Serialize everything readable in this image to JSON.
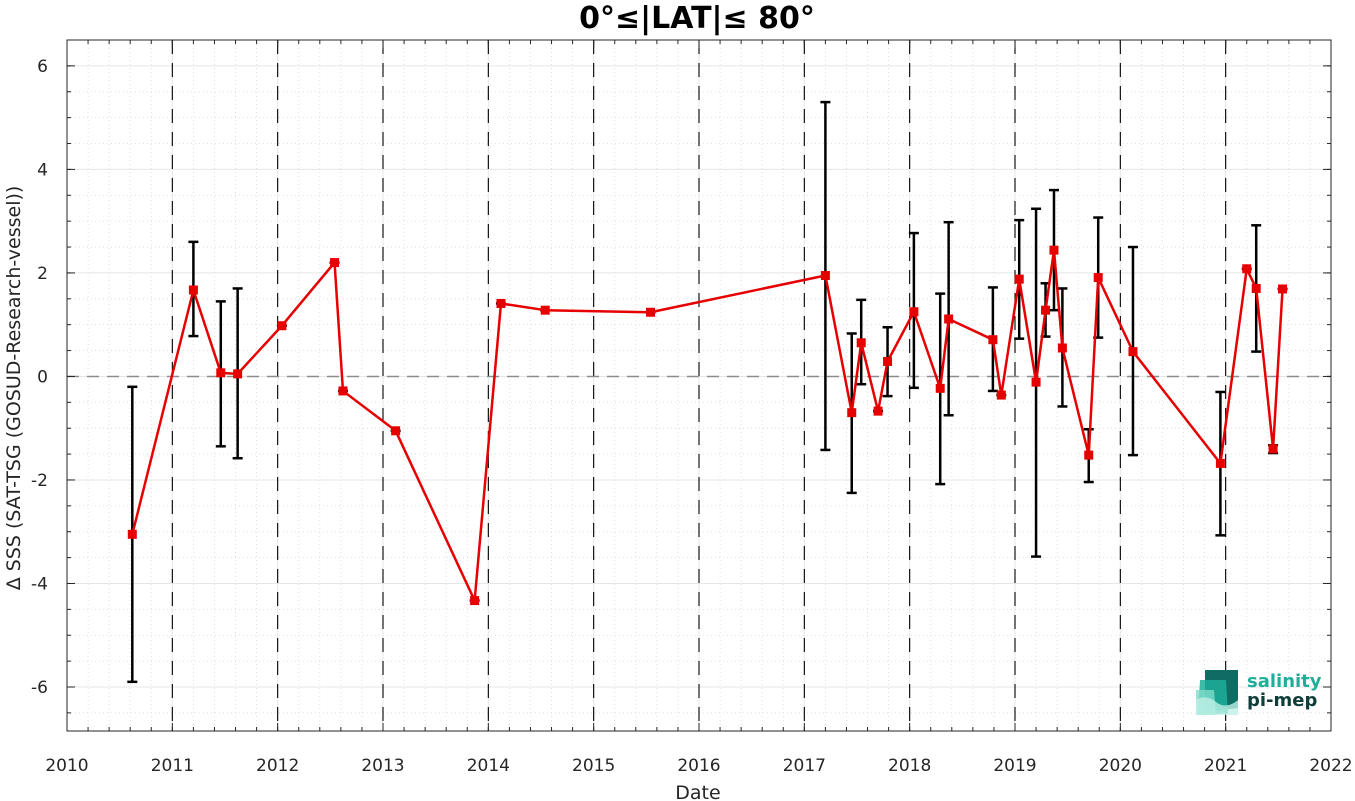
{
  "chart_data": {
    "type": "line",
    "title": "0°≤|LAT|≤ 80°",
    "xlabel": "Date",
    "ylabel": "Δ SSS (SAT-TSG (GOSUD-Research-vessel))",
    "xlim": [
      2010,
      2022
    ],
    "ylim": [
      -6.85,
      6.5
    ],
    "xticks": [
      "2010",
      "2011",
      "2012",
      "2013",
      "2014",
      "2015",
      "2016",
      "2017",
      "2018",
      "2019",
      "2020",
      "2021",
      "2022"
    ],
    "yticks": [
      "-6",
      "-4",
      "-2",
      "0",
      "2",
      "4",
      "6"
    ],
    "grid": true,
    "year_lines": [
      2011,
      2012,
      2013,
      2014,
      2015,
      2016,
      2017,
      2018,
      2019,
      2020,
      2021
    ],
    "reference_line": 0,
    "series": [
      {
        "color": "#e60000",
        "marker": "square",
        "points": [
          {
            "x": 2010.62,
            "y": -3.05,
            "lo": -5.9,
            "hi": -0.2
          },
          {
            "x": 2011.2,
            "y": 1.67,
            "lo": 0.78,
            "hi": 2.6
          },
          {
            "x": 2011.46,
            "y": 0.07,
            "lo": -1.35,
            "hi": 1.45
          },
          {
            "x": 2011.62,
            "y": 0.05,
            "lo": -1.58,
            "hi": 1.7
          },
          {
            "x": 2012.04,
            "y": 0.98,
            "lo": 0.98,
            "hi": 0.98
          },
          {
            "x": 2012.54,
            "y": 2.2,
            "lo": 2.2,
            "hi": 2.2
          },
          {
            "x": 2012.62,
            "y": -0.28,
            "lo": -0.28,
            "hi": -0.28
          },
          {
            "x": 2013.12,
            "y": -1.05,
            "lo": -1.05,
            "hi": -1.05
          },
          {
            "x": 2013.87,
            "y": -4.33,
            "lo": -4.33,
            "hi": -4.33
          },
          {
            "x": 2014.12,
            "y": 1.41,
            "lo": 1.41,
            "hi": 1.41
          },
          {
            "x": 2014.54,
            "y": 1.28,
            "lo": 1.28,
            "hi": 1.28
          },
          {
            "x": 2015.54,
            "y": 1.24,
            "lo": 1.24,
            "hi": 1.24
          },
          {
            "x": 2017.2,
            "y": 1.95,
            "lo": -1.42,
            "hi": 5.3
          },
          {
            "x": 2017.45,
            "y": -0.7,
            "lo": -2.25,
            "hi": 0.83
          },
          {
            "x": 2017.54,
            "y": 0.65,
            "lo": -0.15,
            "hi": 1.48
          },
          {
            "x": 2017.7,
            "y": -0.67,
            "lo": -0.67,
            "hi": -0.67
          },
          {
            "x": 2017.79,
            "y": 0.29,
            "lo": -0.38,
            "hi": 0.95
          },
          {
            "x": 2018.04,
            "y": 1.25,
            "lo": -0.22,
            "hi": 2.77
          },
          {
            "x": 2018.29,
            "y": -0.23,
            "lo": -2.08,
            "hi": 1.6
          },
          {
            "x": 2018.37,
            "y": 1.11,
            "lo": -0.75,
            "hi": 2.98
          },
          {
            "x": 2018.79,
            "y": 0.71,
            "lo": -0.28,
            "hi": 1.72
          },
          {
            "x": 2018.87,
            "y": -0.36,
            "lo": -0.36,
            "hi": -0.36
          },
          {
            "x": 2019.04,
            "y": 1.88,
            "lo": 0.73,
            "hi": 3.02
          },
          {
            "x": 2019.2,
            "y": -0.11,
            "lo": -3.48,
            "hi": 3.24
          },
          {
            "x": 2019.29,
            "y": 1.28,
            "lo": 0.77,
            "hi": 1.8
          },
          {
            "x": 2019.37,
            "y": 2.44,
            "lo": 1.28,
            "hi": 3.6
          },
          {
            "x": 2019.45,
            "y": 0.55,
            "lo": -0.58,
            "hi": 1.7
          },
          {
            "x": 2019.7,
            "y": -1.52,
            "lo": -2.04,
            "hi": -1.02
          },
          {
            "x": 2019.79,
            "y": 1.91,
            "lo": 0.75,
            "hi": 3.07
          },
          {
            "x": 2020.12,
            "y": 0.48,
            "lo": -1.52,
            "hi": 2.5
          },
          {
            "x": 2020.95,
            "y": -1.68,
            "lo": -3.07,
            "hi": -0.3
          },
          {
            "x": 2021.2,
            "y": 2.08,
            "lo": 2.08,
            "hi": 2.08
          },
          {
            "x": 2021.29,
            "y": 1.7,
            "lo": 0.48,
            "hi": 2.92
          },
          {
            "x": 2021.45,
            "y": -1.4,
            "lo": -1.48,
            "hi": -1.33
          },
          {
            "x": 2021.54,
            "y": 1.69,
            "lo": 1.69,
            "hi": 1.69
          }
        ]
      }
    ],
    "errorbar_color": "#000000"
  },
  "logo": {
    "line1": "salinity",
    "line2": "pi-mep",
    "color1": "#1fae9a",
    "color2": "#0f3d3a"
  }
}
